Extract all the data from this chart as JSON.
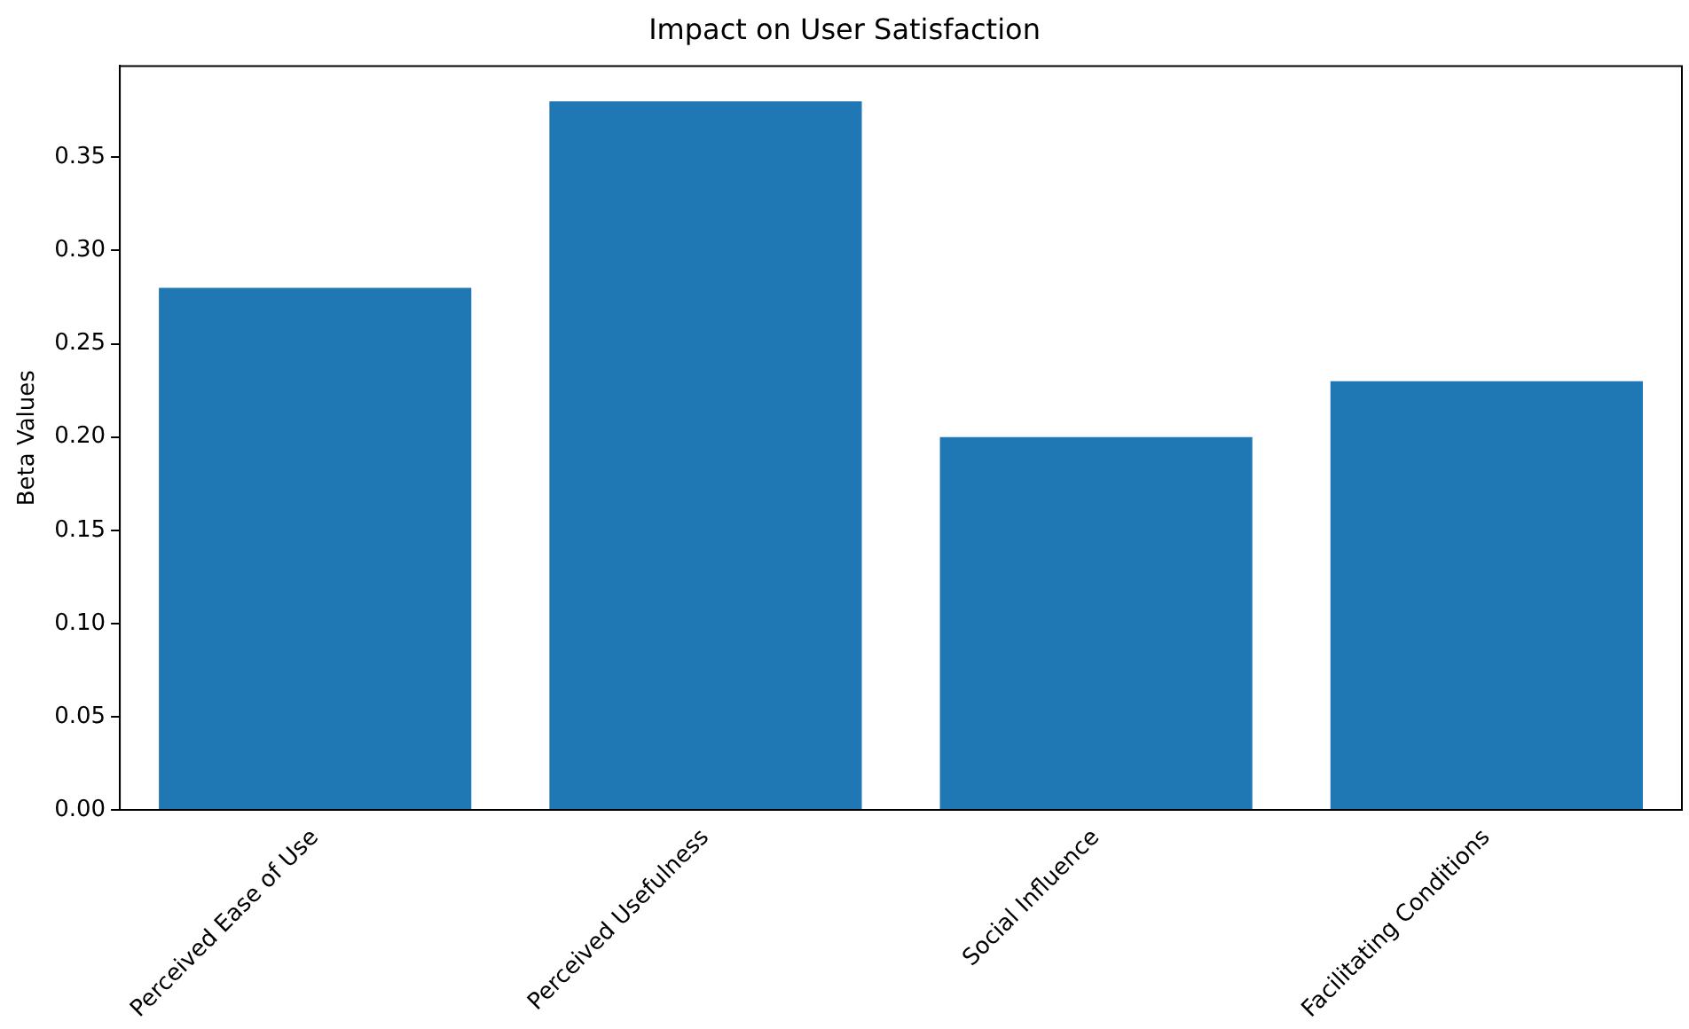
{
  "chart_data": {
    "type": "bar",
    "title": "Impact on User Satisfaction",
    "ylabel": "Beta Values",
    "categories": [
      "Perceived Ease of Use",
      "Perceived Usefulness",
      "Social Influence",
      "Facilitating Conditions"
    ],
    "values": [
      0.28,
      0.38,
      0.2,
      0.23
    ],
    "color": "#1f77b4",
    "ylim": [
      0,
      0.399
    ],
    "yticks": [
      {
        "value": 0,
        "label": "0.00"
      },
      {
        "value": 0.05,
        "label": "0.05"
      },
      {
        "value": 0.1,
        "label": "0.10"
      },
      {
        "value": 0.15,
        "label": "0.15"
      },
      {
        "value": 0.2,
        "label": "0.20"
      },
      {
        "value": 0.25,
        "label": "0.25"
      },
      {
        "value": 0.3,
        "label": "0.30"
      },
      {
        "value": 0.35,
        "label": "0.35"
      }
    ],
    "grid": false,
    "legend": false
  }
}
